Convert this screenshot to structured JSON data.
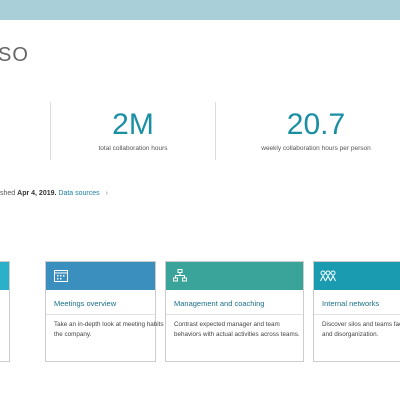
{
  "header": {
    "title": "SO"
  },
  "stats": [
    {
      "value": "2M",
      "label": "total collaboration hours"
    },
    {
      "value": "20.7",
      "label": "weekly collaboration hours per person"
    }
  ],
  "published": {
    "prefix": "shed",
    "date": "Apr 4, 2019.",
    "link": "Data sources"
  },
  "cards": [
    {
      "title": "Meetings overview",
      "description": [
        "Take an in-depth look at meeting habits across",
        "the company."
      ]
    },
    {
      "title": "Management and coaching",
      "description": [
        "Contrast expected manager and team",
        "behaviors with actual activities across teams."
      ]
    },
    {
      "title": "Internal networks",
      "description": [
        "Discover silos and teams facing",
        "and disorganization."
      ]
    }
  ]
}
